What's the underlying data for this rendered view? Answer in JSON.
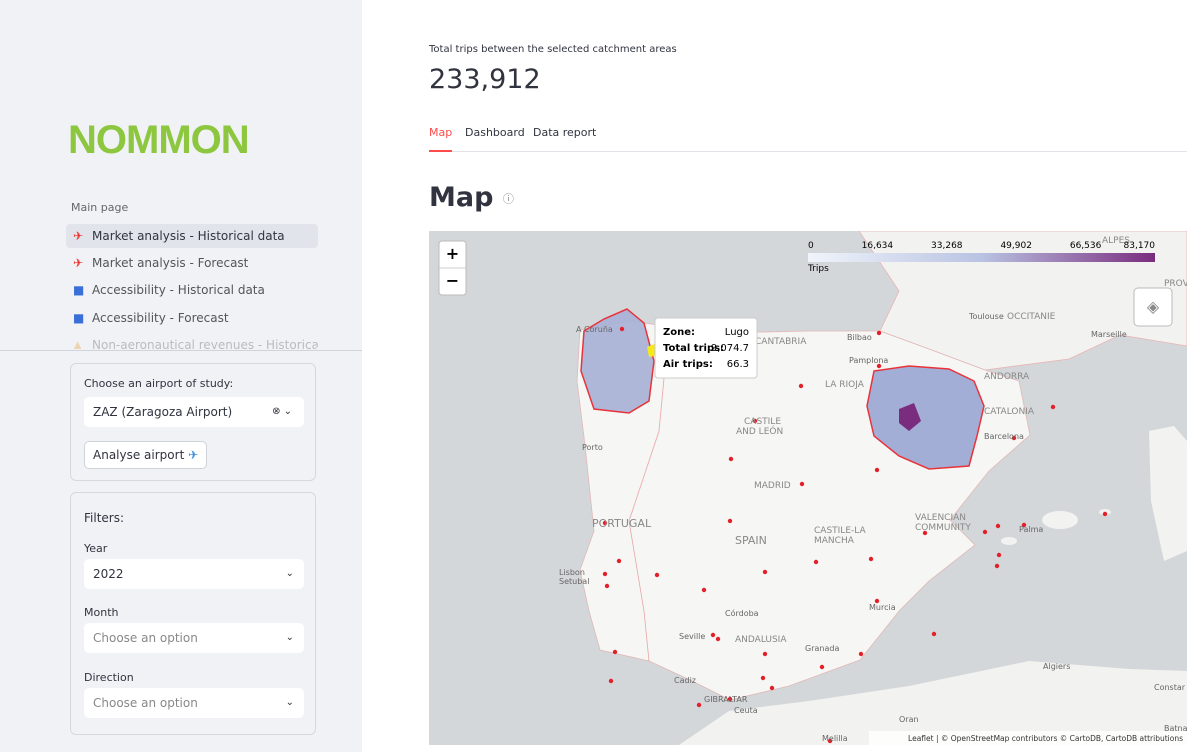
{
  "sidebar": {
    "logo": "NOMMON",
    "nav": [
      "Main page",
      "Market analysis - Historical data",
      "Market analysis - Forecast",
      "Accessibility - Historical data",
      "Accessibility - Forecast",
      "Non-aeronautical revenues - Historical d"
    ],
    "airport_form": {
      "label": "Choose an airport of study:",
      "selected": "ZAZ (Zaragoza Airport)",
      "button": "Analyse airport"
    },
    "filters": {
      "title": "Filters:",
      "fields": [
        {
          "label": "Year",
          "value": "2022"
        },
        {
          "label": "Month",
          "value": "Choose an option"
        },
        {
          "label": "Direction",
          "value": "Choose an option"
        }
      ]
    }
  },
  "main": {
    "metric": {
      "label": "Total trips between the selected catchment areas",
      "value": "233,912"
    },
    "tabs": [
      "Map",
      "Dashboard",
      "Data report"
    ],
    "heading": "Map",
    "map": {
      "zoom": [
        "+",
        "−"
      ],
      "legend": {
        "title": "Trips",
        "ticks": [
          "0",
          "16,634",
          "33,268",
          "49,902",
          "66,536",
          "83,170"
        ]
      },
      "tooltip": [
        [
          "Zone:",
          "Lugo"
        ],
        [
          "Total trips:",
          "9,074.7"
        ],
        [
          "Air trips:",
          "66.3"
        ]
      ],
      "labels": [
        "A Coruña",
        "Bilbao",
        "Pamplona",
        "CANTABRIA",
        "LA RIOJA",
        "ANDORRA",
        "CATALONIA",
        "Barcelona",
        "Toulouse",
        "OCCITANIE",
        "Marseille",
        "CASTILE AND LEÓN",
        "Porto",
        "MADRID",
        "PORTUGAL",
        "SPAIN",
        "CASTILE-LA MANCHA",
        "VALENCIAN COMMUNITY",
        "Palma",
        "Lisbon",
        "Setubal",
        "Córdoba",
        "Seville",
        "ANDALUSIA",
        "Granada",
        "Murcia",
        "Cadiz",
        "GIBRALTAR",
        "Ceuta",
        "Algiers",
        "Oran",
        "Melilla",
        "ALPES",
        "PROVE",
        "Constar",
        "Batna"
      ],
      "attribution": "Leaflet | © OpenStreetMap contributors © CartoDB, CartoDB attributions"
    }
  }
}
